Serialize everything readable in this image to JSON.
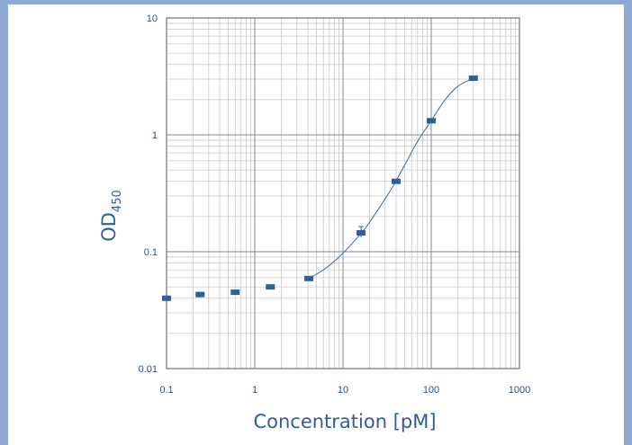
{
  "chart_data": {
    "type": "scatter",
    "xscale": "log",
    "yscale": "log",
    "xlim": [
      0.1,
      1000
    ],
    "ylim": [
      0.01,
      10
    ],
    "xticks": [
      "0.1",
      "1",
      "10",
      "100",
      "1000"
    ],
    "yticks": [
      "0.01",
      "0.1",
      "1",
      "10"
    ],
    "xlabel": "Concentration [pM]",
    "ylabel_main": "OD",
    "ylabel_sub": "450",
    "grid": true,
    "marker_color": "#2e5f9a",
    "curve_color": "#3a6aa6",
    "series": [
      {
        "x": [
          0.1,
          0.24,
          0.6,
          1.5,
          4.1,
          16,
          40,
          100,
          300
        ],
        "y": [
          0.04,
          0.043,
          0.045,
          0.05,
          0.059,
          0.145,
          0.4,
          1.32,
          3.05
        ]
      }
    ],
    "fit_curve": {
      "x": [
        4.1,
        6,
        9,
        13,
        18,
        25,
        35,
        50,
        70,
        100,
        140,
        200,
        300
      ],
      "y": [
        0.059,
        0.07,
        0.09,
        0.12,
        0.16,
        0.23,
        0.34,
        0.55,
        0.88,
        1.32,
        1.95,
        2.6,
        3.05
      ]
    }
  }
}
